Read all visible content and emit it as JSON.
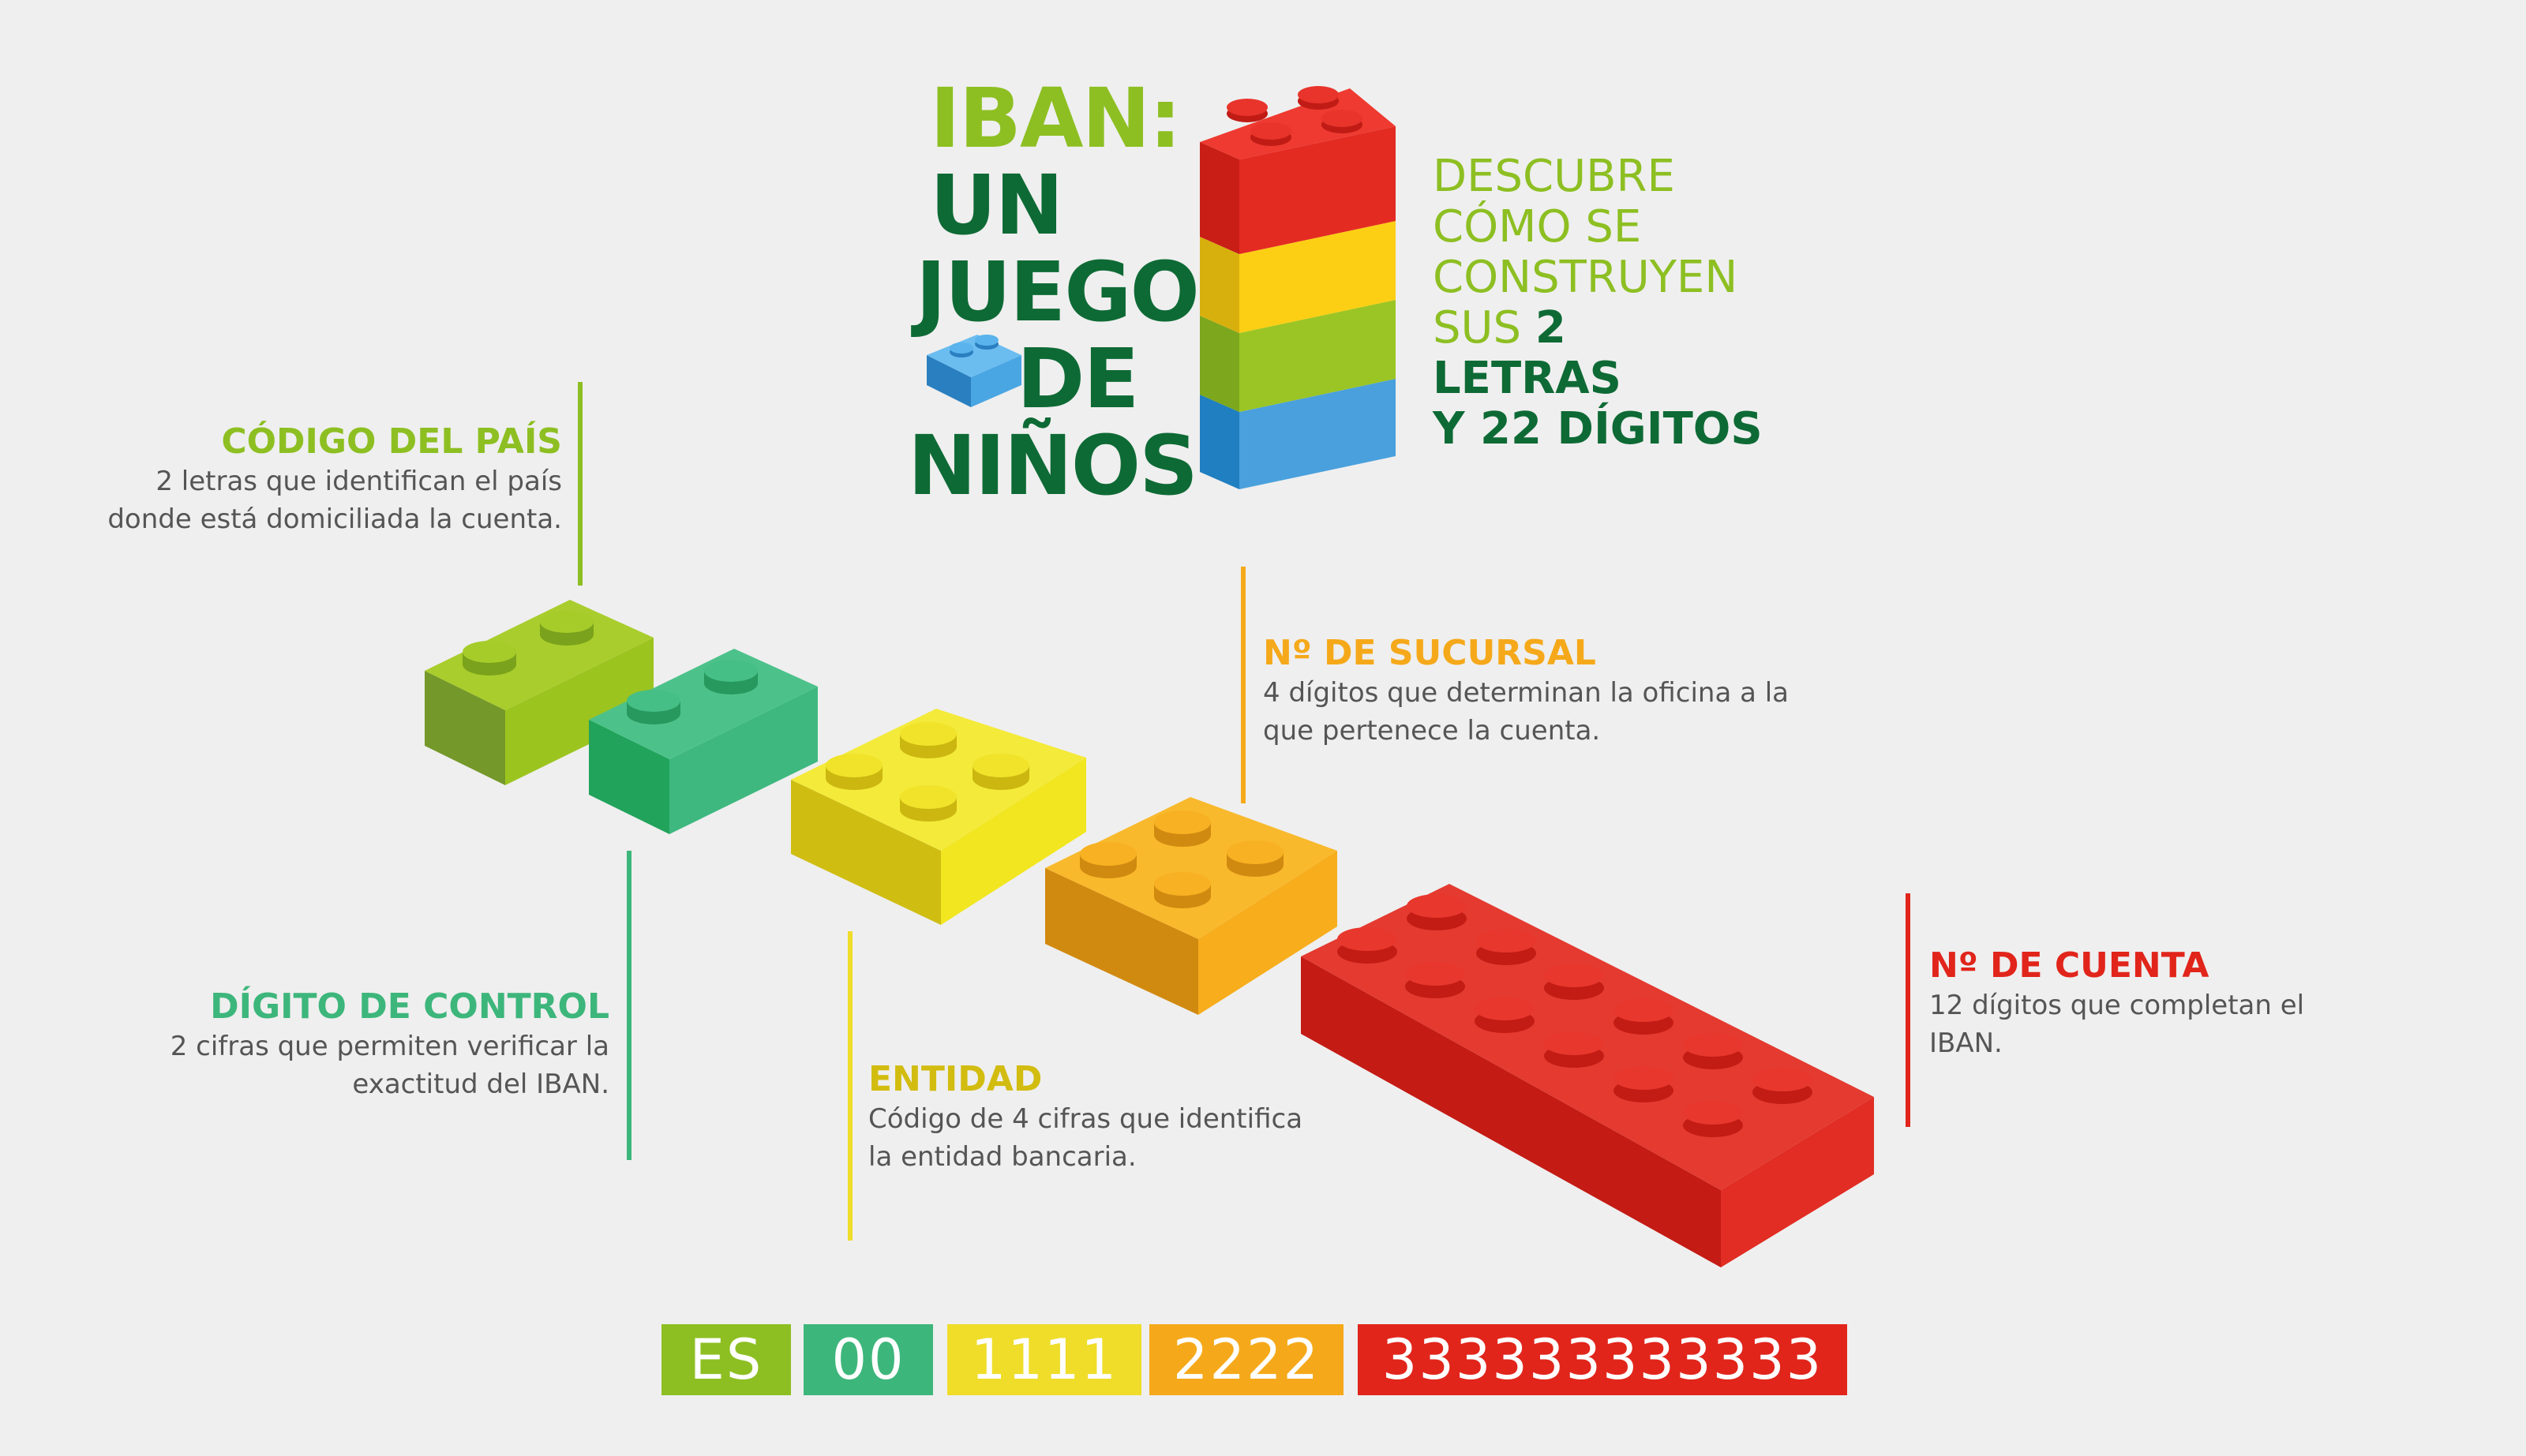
{
  "title": {
    "line1": "IBAN:",
    "line2": "UN",
    "line3": "JUEGO",
    "line4": "DE",
    "line5": "NIÑOS"
  },
  "tagline": {
    "l1": "DESCUBRE",
    "l2": "CÓMO SE",
    "l3": "CONSTRUYEN",
    "l4_prefix": "SUS ",
    "l4_bold": "2",
    "l5": "LETRAS",
    "l6": "Y 22 DÍGITOS"
  },
  "labels": {
    "pais": {
      "title": "CÓDIGO DEL PAÍS",
      "desc1": "2 letras que identifican el país",
      "desc2": "donde está domiciliada la cuenta."
    },
    "control": {
      "title": "DÍGITO DE CONTROL",
      "desc1": "2 cifras que permiten verificar la",
      "desc2": "exactitud del IBAN."
    },
    "entidad": {
      "title": "ENTIDAD",
      "desc1": "Código de 4 cifras que identifica",
      "desc2": "la entidad bancaria."
    },
    "sucursal": {
      "title": "Nº DE SUCURSAL",
      "desc1": "4 dígitos que determinan la oficina a la",
      "desc2": "que pertenece la cuenta."
    },
    "cuenta": {
      "title": "Nº DE CUENTA",
      "desc1": "12 dígitos que completan el",
      "desc2": "IBAN."
    }
  },
  "codes": {
    "country": "ES",
    "control": "00",
    "entity": "1111",
    "branch": "2222",
    "account": "333333333333"
  },
  "colors": {
    "lime": "#8dbf22",
    "green": "#3db67b",
    "yellow": "#efdd2a",
    "orange": "#f5a91a",
    "red": "#e1251b",
    "dark_green": "#0e6a35",
    "blue": "#3f98d6"
  }
}
